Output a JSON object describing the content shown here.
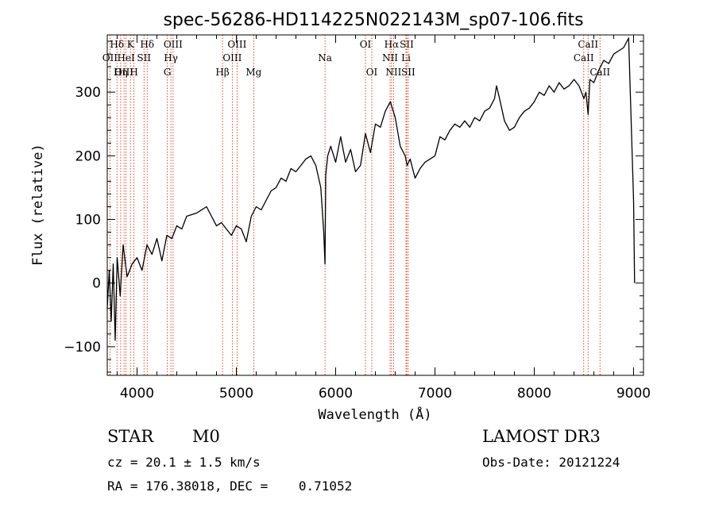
{
  "chart_data": {
    "type": "line",
    "title": "spec-56286-HD114225N022143M_sp07-106.fits",
    "xlabel": "Wavelength (Å)",
    "ylabel": "Flux (relative)",
    "xlim": [
      3700,
      9100
    ],
    "ylim": [
      -145,
      390
    ],
    "xticks": [
      4000,
      5000,
      6000,
      7000,
      8000,
      9000
    ],
    "yticks": [
      -100,
      0,
      100,
      200,
      300
    ],
    "grid": false,
    "line_color": "#000000",
    "marker_color": "#cc2200",
    "series": [
      {
        "x": [
          3700,
          3720,
          3740,
          3760,
          3780,
          3800,
          3830,
          3860,
          3900,
          3950,
          4000,
          4050,
          4100,
          4150,
          4200,
          4250,
          4300,
          4350,
          4400,
          4450,
          4500,
          4600,
          4700,
          4800,
          4850,
          4900,
          4950,
          5000,
          5050,
          5100,
          5150,
          5200,
          5250,
          5300,
          5350,
          5400,
          5450,
          5500,
          5550,
          5600,
          5650,
          5700,
          5750,
          5800,
          5850,
          5880,
          5893,
          5900,
          5920,
          5950,
          6000,
          6050,
          6100,
          6150,
          6200,
          6250,
          6300,
          6350,
          6400,
          6450,
          6500,
          6550,
          6600,
          6650,
          6700,
          6720,
          6750,
          6800,
          6850,
          6900,
          6950,
          7000,
          7050,
          7100,
          7150,
          7200,
          7250,
          7300,
          7350,
          7400,
          7450,
          7500,
          7550,
          7600,
          7620,
          7650,
          7700,
          7750,
          7800,
          7850,
          7900,
          7950,
          8000,
          8050,
          8100,
          8150,
          8200,
          8250,
          8300,
          8350,
          8400,
          8450,
          8500,
          8520,
          8542,
          8560,
          8600,
          8650,
          8700,
          8750,
          8800,
          8850,
          8900,
          8950,
          9000,
          9010
        ],
        "y": [
          -40,
          20,
          -60,
          30,
          -90,
          40,
          -20,
          60,
          10,
          30,
          40,
          20,
          60,
          45,
          70,
          35,
          75,
          70,
          90,
          85,
          105,
          110,
          120,
          90,
          95,
          85,
          75,
          90,
          85,
          65,
          105,
          120,
          115,
          130,
          145,
          150,
          165,
          160,
          180,
          175,
          185,
          195,
          200,
          185,
          150,
          80,
          30,
          170,
          200,
          215,
          190,
          230,
          190,
          210,
          175,
          185,
          235,
          205,
          250,
          245,
          270,
          285,
          260,
          215,
          200,
          185,
          195,
          165,
          180,
          190,
          195,
          200,
          230,
          225,
          240,
          250,
          245,
          255,
          245,
          260,
          255,
          270,
          275,
          290,
          310,
          290,
          255,
          240,
          245,
          260,
          270,
          275,
          285,
          300,
          295,
          310,
          300,
          315,
          305,
          310,
          320,
          310,
          290,
          300,
          265,
          320,
          315,
          335,
          350,
          345,
          360,
          365,
          370,
          385,
          130,
          0
        ]
      }
    ],
    "line_markers": [
      {
        "label": "Hδ",
        "x": 3798,
        "row": 0
      },
      {
        "label": "OII",
        "x": 3727,
        "row": 1
      },
      {
        "label": "OIII",
        "x": 3869,
        "row": 2
      },
      {
        "label": "K",
        "x": 3934,
        "row": 0
      },
      {
        "label": "HeI",
        "x": 3889,
        "row": 1
      },
      {
        "label": "Hη",
        "x": 3835,
        "row": 2
      },
      {
        "label": "SII",
        "x": 4070,
        "row": 1
      },
      {
        "label": "H",
        "x": 3969,
        "row": 2
      },
      {
        "label": "Hδ",
        "x": 4102,
        "row": 0
      },
      {
        "label": "OIII",
        "x": 4363,
        "row": 0
      },
      {
        "label": "Hγ",
        "x": 4341,
        "row": 1
      },
      {
        "label": "G",
        "x": 4305,
        "row": 2
      },
      {
        "label": "Hβ",
        "x": 4861,
        "row": 2
      },
      {
        "label": "OIII",
        "x": 5007,
        "row": 0
      },
      {
        "label": "OIII",
        "x": 4959,
        "row": 1
      },
      {
        "label": "Mg",
        "x": 5175,
        "row": 2
      },
      {
        "label": "Na",
        "x": 5893,
        "row": 1
      },
      {
        "label": "OI",
        "x": 6300,
        "row": 0
      },
      {
        "label": "OI",
        "x": 6364,
        "row": 2
      },
      {
        "label": "Hα",
        "x": 6563,
        "row": 0
      },
      {
        "label": "SII",
        "x": 6716,
        "row": 0
      },
      {
        "label": "NII",
        "x": 6548,
        "row": 1
      },
      {
        "label": "Li",
        "x": 6708,
        "row": 1
      },
      {
        "label": "NII",
        "x": 6583,
        "row": 2
      },
      {
        "label": "SII",
        "x": 6731,
        "row": 2
      },
      {
        "label": "CaII",
        "x": 8542,
        "row": 0
      },
      {
        "label": "CaII",
        "x": 8498,
        "row": 1
      },
      {
        "label": "CaII",
        "x": 8662,
        "row": 2
      }
    ]
  },
  "footer": {
    "class_label": "STAR",
    "subclass_label": "M0",
    "survey_label": "LAMOST DR3",
    "cz_text": "cz = 20.1 ± 1.5 km/s",
    "obs_date_text": "Obs-Date: 20121224",
    "radec_text": "RA = 176.38018, DEC =    0.71052"
  }
}
